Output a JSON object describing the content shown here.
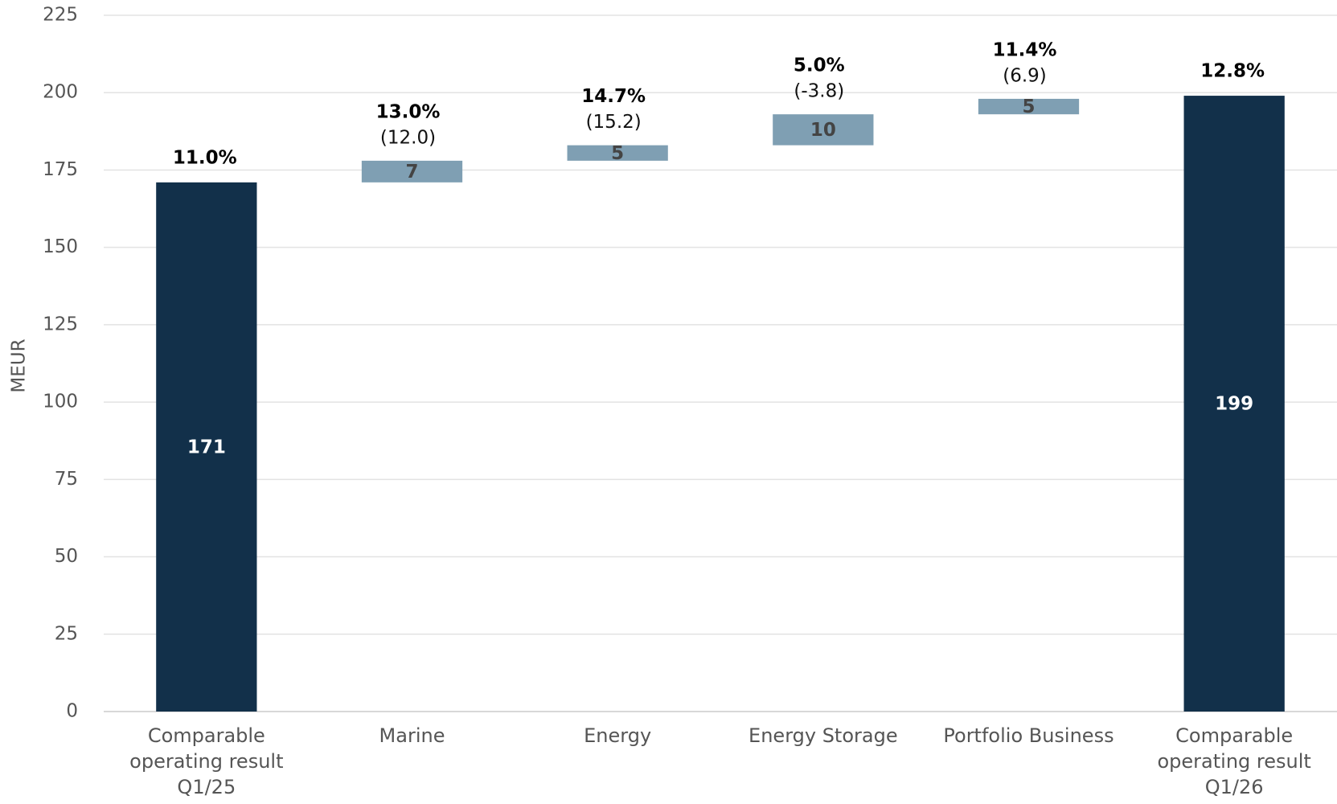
{
  "chart_data": {
    "type": "waterfall",
    "y_label": "MEUR",
    "categories": [
      "Comparable operating result Q1/25",
      "Marine",
      "Energy",
      "Energy Storage",
      "Portfolio Business",
      "Comparable operating result Q1/26"
    ],
    "values": [
      171,
      7,
      5,
      10,
      5,
      199
    ],
    "is_total": [
      true,
      false,
      false,
      false,
      false,
      true
    ],
    "margins": [
      "11.0%",
      "13.0%",
      "14.7%",
      "5.0%",
      "11.4%",
      "12.8%"
    ],
    "changes": [
      null,
      "(12.0)",
      "(15.2)",
      "(-3.8)",
      "(6.9)",
      null
    ],
    "total_color": "#12304a",
    "delta_color": "#7f9fb3",
    "ylim": [
      0,
      225
    ],
    "yticks": [
      0,
      25,
      50,
      75,
      100,
      125,
      150,
      175,
      200,
      225
    ],
    "grid": true
  }
}
